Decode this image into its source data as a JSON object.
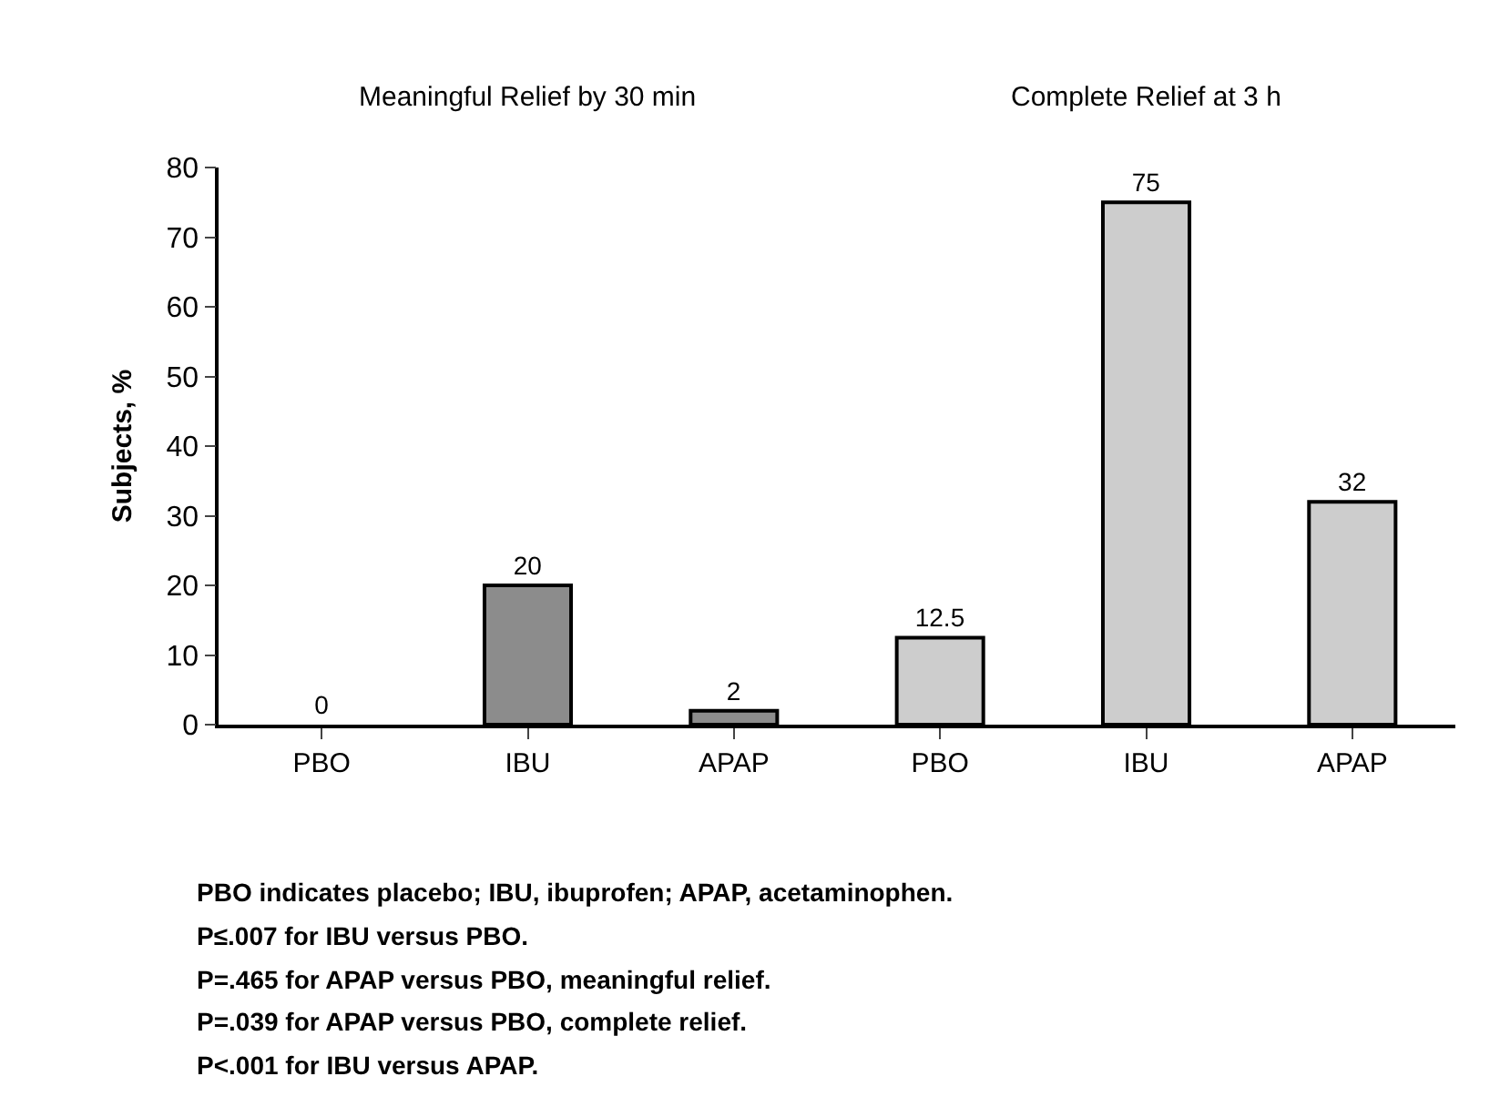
{
  "chart_data": {
    "type": "bar",
    "categories": [
      "PBO",
      "IBU",
      "APAP",
      "PBO",
      "IBU",
      "APAP"
    ],
    "values": [
      0,
      20,
      2,
      12.5,
      75,
      32
    ],
    "colors": [
      "#8c8c8c",
      "#8c8c8c",
      "#8c8c8c",
      "#cdcdcd",
      "#cdcdcd",
      "#cdcdcd"
    ],
    "ylabel": "Subjects, %",
    "ylim": [
      0,
      80
    ],
    "yticks": [
      0,
      10,
      20,
      30,
      40,
      50,
      60,
      70,
      80
    ],
    "data_labels": true,
    "annotations": [
      "Meaningful Relief by 30 min",
      "Complete Relief at 3 h",
      "PBO indicates placebo; IBU, ibuprofen; APAP, acetaminophen.",
      "P≤.007 for IBU versus PBO.",
      "P=.465 for APAP versus PBO, meaningful relief.",
      "P=.039 for APAP versus PBO, complete relief.",
      "P<.001 for IBU versus APAP."
    ]
  }
}
